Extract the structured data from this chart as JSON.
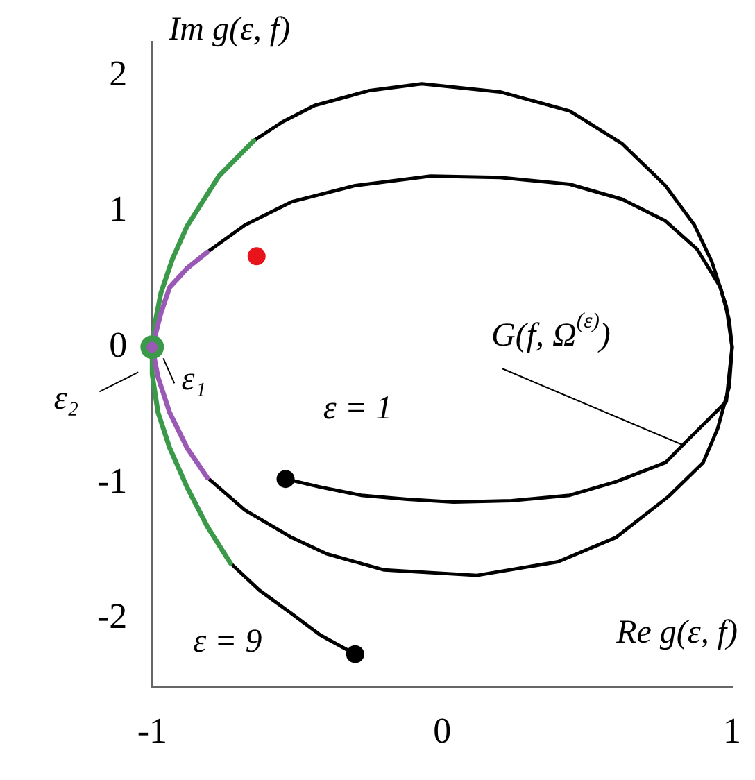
{
  "chart_data": {
    "type": "line",
    "xlabel": "Re g(ε, f)",
    "ylabel": "Im g(ε, f)",
    "xlim": [
      -1,
      1
    ],
    "xticks": [
      -1,
      0,
      1
    ],
    "ylim": [
      -2.5,
      2.25
    ],
    "yticks": [
      -2,
      -1,
      0,
      1,
      2
    ],
    "series": [
      {
        "type": "line",
        "color": "#000000",
        "x": [
          -0.3,
          -0.42,
          -0.52,
          -0.63,
          -0.73
        ],
        "values": [
          -2.26,
          -2.12,
          -1.96,
          -1.79,
          -1.59
        ]
      },
      {
        "type": "line",
        "color": "#000000",
        "x": [
          -0.65,
          -0.55,
          -0.44,
          -0.25,
          -0.07,
          0.2,
          0.44,
          0.62,
          0.77,
          0.87,
          0.93,
          0.98,
          1,
          0.99,
          0.95,
          0.9,
          0.78,
          0.6,
          0.4,
          0.12,
          -0.2,
          -0.4,
          -0.52,
          -0.68,
          -0.81
        ],
        "values": [
          1.52,
          1.66,
          1.78,
          1.89,
          1.94,
          1.88,
          1.74,
          1.5,
          1.19,
          0.9,
          0.63,
          0.3,
          0,
          -0.29,
          -0.6,
          -0.85,
          -1.1,
          -1.4,
          -1.58,
          -1.68,
          -1.64,
          -1.52,
          -1.4,
          -1.2,
          -0.96
        ]
      },
      {
        "type": "line",
        "color": "#000000",
        "x": [
          -0.81,
          -0.68,
          -0.52,
          -0.3,
          -0.04,
          0.2,
          0.44,
          0.62,
          0.77,
          0.88,
          0.96,
          0.99,
          1,
          0.98,
          0.83,
          0.77,
          0.6,
          0.44,
          0.24,
          0.04,
          -0.12,
          -0.28,
          -0.42,
          -0.54
        ],
        "values": [
          0.7,
          0.9,
          1.07,
          1.19,
          1.26,
          1.25,
          1.2,
          1.09,
          0.93,
          0.72,
          0.44,
          0.2,
          0,
          -0.4,
          -0.72,
          -0.85,
          -0.99,
          -1.09,
          -1.13,
          -1.14,
          -1.12,
          -1.09,
          -1.03,
          -0.97
        ]
      },
      {
        "type": "line",
        "color": "#3a9a4a",
        "x": [
          -0.73,
          -0.81,
          -0.88,
          -0.94,
          -0.98,
          -1,
          -1
        ],
        "values": [
          -1.59,
          -1.32,
          -1.03,
          -0.74,
          -0.48,
          -0.2,
          0
        ]
      },
      {
        "type": "line",
        "color": "#3a9a4a",
        "x": [
          -1,
          -0.99,
          -0.97,
          -0.93,
          -0.88,
          -0.77,
          -0.65
        ],
        "values": [
          0,
          0.18,
          0.4,
          0.65,
          0.89,
          1.26,
          1.52
        ]
      },
      {
        "type": "line",
        "color": "#9b59b6",
        "x": [
          -0.81,
          -0.88,
          -0.94,
          -0.98,
          -1
        ],
        "values": [
          -0.96,
          -0.74,
          -0.48,
          -0.22,
          0
        ]
      },
      {
        "type": "line",
        "color": "#9b59b6",
        "x": [
          -1,
          -0.97,
          -0.94,
          -0.88,
          -0.81
        ],
        "values": [
          0,
          0.25,
          0.44,
          0.58,
          0.7
        ]
      },
      {
        "type": "scatter",
        "marker": "circle",
        "color": "#000000",
        "x": [
          -0.3,
          -0.54
        ],
        "values": [
          -2.26,
          -0.97
        ]
      },
      {
        "type": "scatter",
        "marker": "circle",
        "color": "#e8141c",
        "x": [
          -0.64
        ],
        "values": [
          0.67
        ]
      },
      {
        "type": "scatter",
        "marker": "circle",
        "color": "#3a9a4a",
        "x": [
          -1
        ],
        "values": [
          0
        ]
      },
      {
        "type": "scatter",
        "marker": "circle",
        "color": "#9b59b6",
        "x": [
          -1
        ],
        "values": [
          0
        ]
      }
    ],
    "annotations": [
      {
        "text": "ε = 1",
        "x": -0.54,
        "y": -0.97
      },
      {
        "text": "ε = 9",
        "x": -0.3,
        "y": -2.26
      },
      {
        "text": "ε₁",
        "x": -1,
        "y": 0
      },
      {
        "text": "ε₂",
        "x": -1,
        "y": 0
      },
      {
        "text": "G(f, Ω$^{(ε)}$)",
        "x": 0.83,
        "y": -0.72
      }
    ]
  }
}
